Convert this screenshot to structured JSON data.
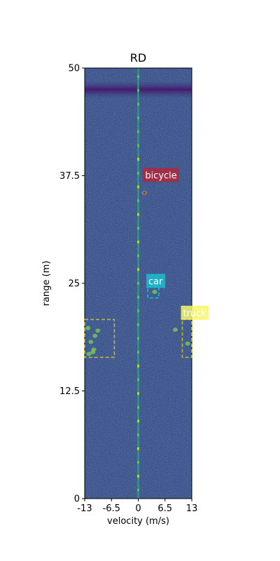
{
  "chart_data": {
    "type": "heatmap",
    "title": "RD",
    "xlabel": "velocity (m/s)",
    "ylabel": "range (m)",
    "xlim": [
      -13,
      13
    ],
    "ylim": [
      0,
      50
    ],
    "x_ticks": [
      {
        "value": -13,
        "label": "-13"
      },
      {
        "value": -6.5,
        "label": "-6.5"
      },
      {
        "value": 0,
        "label": "0"
      },
      {
        "value": 6.5,
        "label": "6.5"
      },
      {
        "value": 13,
        "label": "13"
      }
    ],
    "y_ticks": [
      {
        "value": 0,
        "label": "0"
      },
      {
        "value": 12.5,
        "label": "12.5"
      },
      {
        "value": 25,
        "label": "25"
      },
      {
        "value": 37.5,
        "label": "37.5"
      },
      {
        "value": 50,
        "label": "50"
      }
    ],
    "colormap": "viridis",
    "background_color": "#3b518b",
    "features": {
      "zero_doppler_line_velocity": 0,
      "dark_band_range": [
        46.5,
        48.5
      ]
    },
    "annotations": [
      {
        "label": "bicycle",
        "color": "#b0283c",
        "box": null,
        "label_at": {
          "velocity": 1.5,
          "range": 37.5
        },
        "marker": {
          "velocity": 1.5,
          "range": 35.5
        }
      },
      {
        "label": "car",
        "color": "#17becf",
        "box": {
          "v_min": 2.3,
          "v_max": 5.0,
          "r_min": 23.3,
          "r_max": 24.6
        },
        "label_at": {
          "velocity": 2.3,
          "range": 25.2
        }
      },
      {
        "label": "truck",
        "color": "#bcbd22",
        "label_bg": "#f7f76b",
        "box": {
          "v_min": 10.7,
          "v_max": 13.0,
          "r_min": 16.4,
          "r_max": 20.8
        },
        "label_at": {
          "velocity": 10.7,
          "range": 21.5
        }
      },
      {
        "label": "",
        "color": "#bcbd22",
        "box": {
          "v_min": -13.0,
          "v_max": -5.8,
          "r_min": 16.4,
          "r_max": 20.8
        }
      }
    ]
  }
}
